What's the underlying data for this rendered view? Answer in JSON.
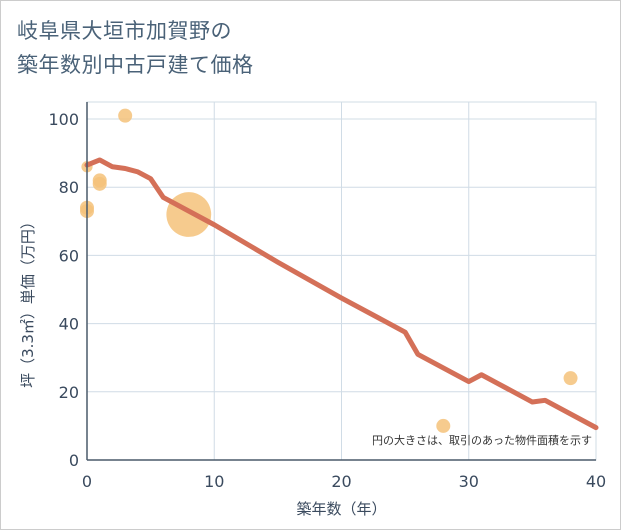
{
  "title_lines": [
    "岐阜県大垣市加賀野の",
    "築年数別中古戸建て価格"
  ],
  "chart_data": {
    "type": "scatter",
    "title": "岐阜県大垣市加賀野の築年数別中古戸建て価格",
    "xlabel": "築年数（年）",
    "ylabel": "坪（3.3㎡）単価（万円）",
    "xlim": [
      0,
      40
    ],
    "ylim": [
      0,
      105
    ],
    "x_ticks": [
      0,
      10,
      20,
      30,
      40
    ],
    "y_ticks": [
      0,
      20,
      40,
      60,
      80,
      100
    ],
    "grid": true,
    "note": "円の大きさは、取引のあった物件面積を示す",
    "scatter_points": [
      {
        "x": 0,
        "y": 74,
        "size": 1.0
      },
      {
        "x": 0,
        "y": 73,
        "size": 1.0
      },
      {
        "x": 0,
        "y": 86,
        "size": 0.8
      },
      {
        "x": 1,
        "y": 82,
        "size": 1.0
      },
      {
        "x": 1,
        "y": 81,
        "size": 1.0
      },
      {
        "x": 3,
        "y": 101,
        "size": 1.0
      },
      {
        "x": 8,
        "y": 72,
        "size": 3.2
      },
      {
        "x": 28,
        "y": 10,
        "size": 1.0
      },
      {
        "x": 38,
        "y": 24,
        "size": 1.0
      }
    ],
    "trend_line": {
      "x": [
        0,
        1,
        2,
        3,
        4,
        5,
        6,
        10,
        15,
        20,
        25,
        26,
        30,
        31,
        35,
        36,
        40
      ],
      "y": [
        86.5,
        88,
        86,
        85.5,
        84.5,
        82.5,
        77,
        69,
        58,
        47.5,
        37.5,
        31,
        23,
        25,
        17,
        17.5,
        9.5
      ]
    },
    "colors": {
      "points": "#f5c27a",
      "line": "#d47058",
      "grid": "#d0dce6",
      "axis": "#4a5a6a"
    }
  }
}
